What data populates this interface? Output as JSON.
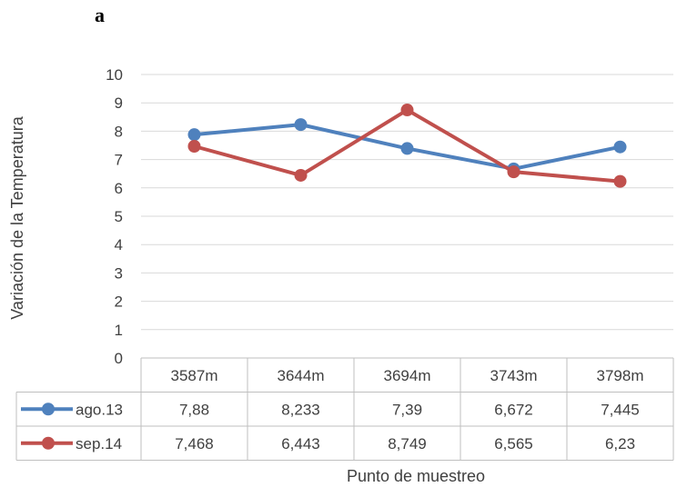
{
  "panel_label": "a",
  "chart_data": {
    "type": "line",
    "categories": [
      "3587m",
      "3644m",
      "3694m",
      "3743m",
      "3798m"
    ],
    "series": [
      {
        "name": "ago.13",
        "values": [
          7.88,
          8.233,
          7.39,
          6.672,
          7.445
        ],
        "labels": [
          "7,88",
          "8,233",
          "7,39",
          "6,672",
          "7,445"
        ],
        "color": "#4f81bd"
      },
      {
        "name": "sep.14",
        "values": [
          7.468,
          6.443,
          8.749,
          6.565,
          6.23
        ],
        "labels": [
          "7,468",
          "6,443",
          "8,749",
          "6,565",
          "6,23"
        ],
        "color": "#c0504d"
      }
    ],
    "title": "",
    "xlabel": "Punto de muestreo",
    "ylabel": "Variación de la Temperatura",
    "ylim": [
      0,
      10
    ],
    "yticks": [
      0,
      1,
      2,
      3,
      4,
      5,
      6,
      7,
      8,
      9,
      10
    ],
    "grid": true,
    "legend": "data-table"
  }
}
